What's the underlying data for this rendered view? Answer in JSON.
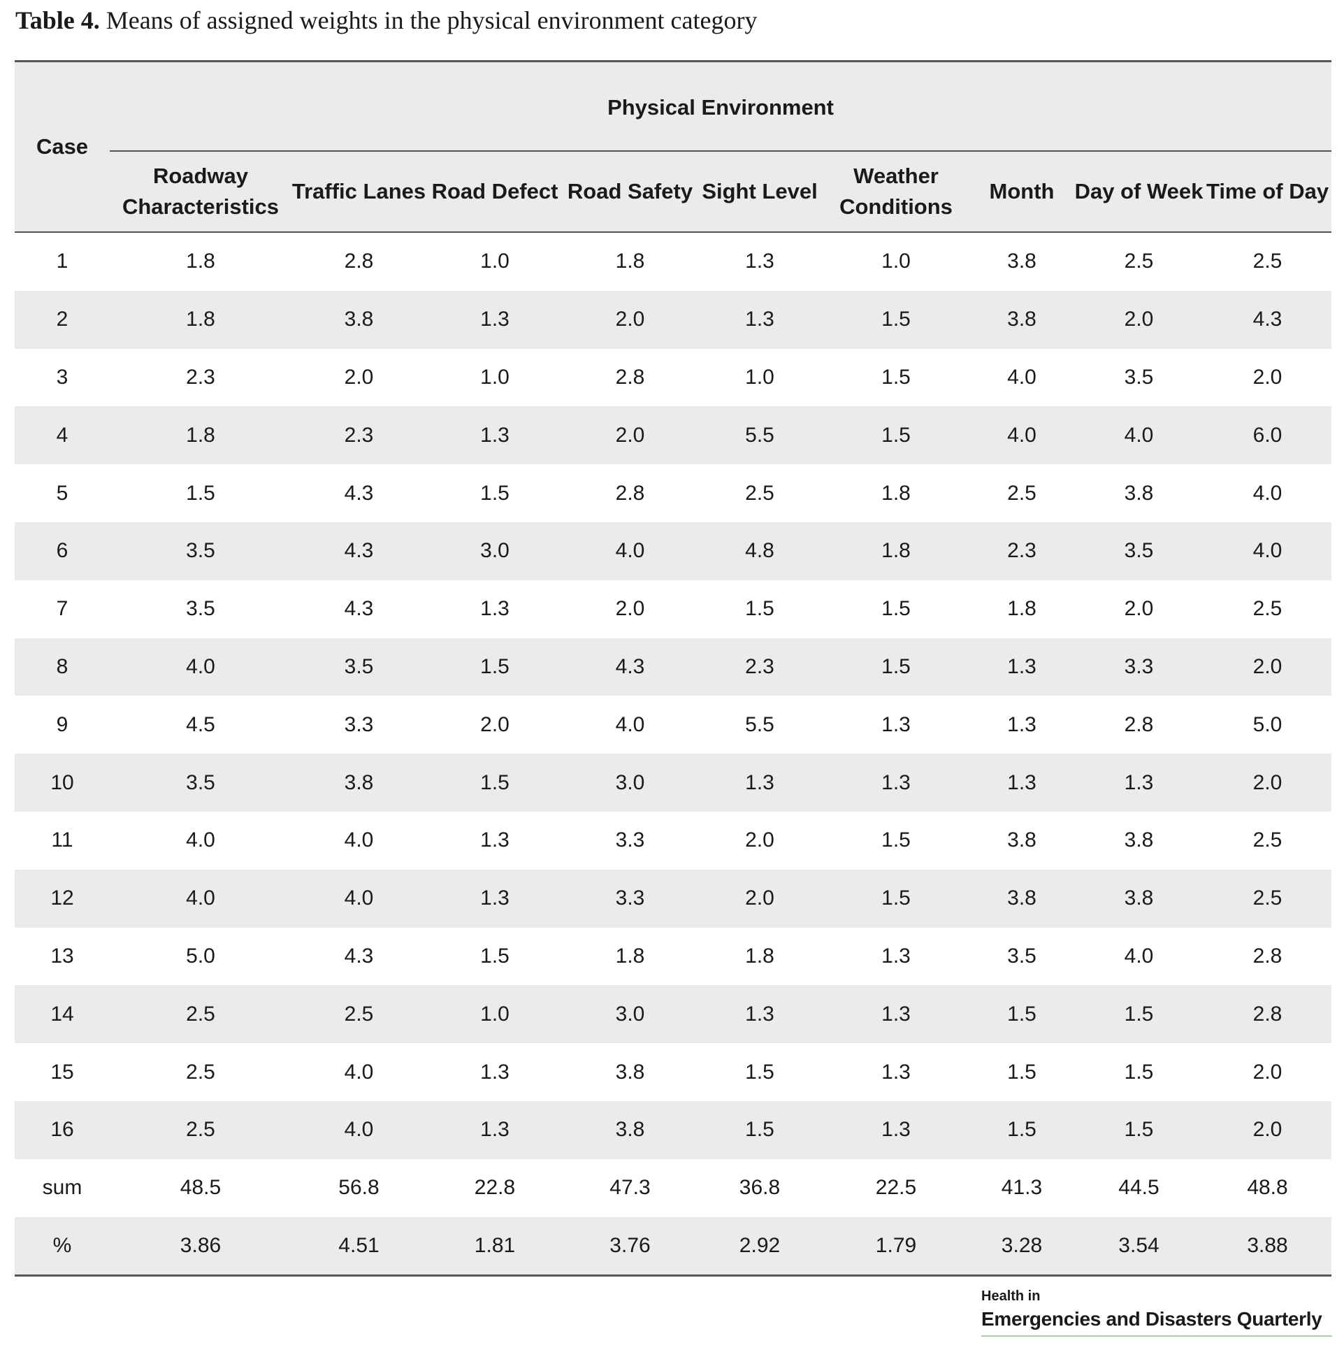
{
  "caption": {
    "label": "Table 4.",
    "text": "Means of assigned weights in the physical environment category"
  },
  "table": {
    "case_header": "Case",
    "group_header": "Physical Environment",
    "columns": [
      "Roadway Characteristics",
      "Traffic Lanes",
      "Road Defect",
      "Road Safety",
      "Sight Level",
      "Weather Conditions",
      "Month",
      "Day of Week",
      "Time of Day"
    ],
    "rows": [
      [
        "1",
        "1.8",
        "2.8",
        "1.0",
        "1.8",
        "1.3",
        "1.0",
        "3.8",
        "2.5",
        "2.5"
      ],
      [
        "2",
        "1.8",
        "3.8",
        "1.3",
        "2.0",
        "1.3",
        "1.5",
        "3.8",
        "2.0",
        "4.3"
      ],
      [
        "3",
        "2.3",
        "2.0",
        "1.0",
        "2.8",
        "1.0",
        "1.5",
        "4.0",
        "3.5",
        "2.0"
      ],
      [
        "4",
        "1.8",
        "2.3",
        "1.3",
        "2.0",
        "5.5",
        "1.5",
        "4.0",
        "4.0",
        "6.0"
      ],
      [
        "5",
        "1.5",
        "4.3",
        "1.5",
        "2.8",
        "2.5",
        "1.8",
        "2.5",
        "3.8",
        "4.0"
      ],
      [
        "6",
        "3.5",
        "4.3",
        "3.0",
        "4.0",
        "4.8",
        "1.8",
        "2.3",
        "3.5",
        "4.0"
      ],
      [
        "7",
        "3.5",
        "4.3",
        "1.3",
        "2.0",
        "1.5",
        "1.5",
        "1.8",
        "2.0",
        "2.5"
      ],
      [
        "8",
        "4.0",
        "3.5",
        "1.5",
        "4.3",
        "2.3",
        "1.5",
        "1.3",
        "3.3",
        "2.0"
      ],
      [
        "9",
        "4.5",
        "3.3",
        "2.0",
        "4.0",
        "5.5",
        "1.3",
        "1.3",
        "2.8",
        "5.0"
      ],
      [
        "10",
        "3.5",
        "3.8",
        "1.5",
        "3.0",
        "1.3",
        "1.3",
        "1.3",
        "1.3",
        "2.0"
      ],
      [
        "11",
        "4.0",
        "4.0",
        "1.3",
        "3.3",
        "2.0",
        "1.5",
        "3.8",
        "3.8",
        "2.5"
      ],
      [
        "12",
        "4.0",
        "4.0",
        "1.3",
        "3.3",
        "2.0",
        "1.5",
        "3.8",
        "3.8",
        "2.5"
      ],
      [
        "13",
        "5.0",
        "4.3",
        "1.5",
        "1.8",
        "1.8",
        "1.3",
        "3.5",
        "4.0",
        "2.8"
      ],
      [
        "14",
        "2.5",
        "2.5",
        "1.0",
        "3.0",
        "1.3",
        "1.3",
        "1.5",
        "1.5",
        "2.8"
      ],
      [
        "15",
        "2.5",
        "4.0",
        "1.3",
        "3.8",
        "1.5",
        "1.3",
        "1.5",
        "1.5",
        "2.0"
      ],
      [
        "16",
        "2.5",
        "4.0",
        "1.3",
        "3.8",
        "1.5",
        "1.3",
        "1.5",
        "1.5",
        "2.0"
      ],
      [
        "sum",
        "48.5",
        "56.8",
        "22.8",
        "47.3",
        "36.8",
        "22.5",
        "41.3",
        "44.5",
        "48.8"
      ],
      [
        "%",
        "3.86",
        "4.51",
        "1.81",
        "3.76",
        "2.92",
        "1.79",
        "3.28",
        "3.54",
        "3.88"
      ]
    ]
  },
  "journal_logo": {
    "line1": "Health in",
    "line2": "Emergencies and Disasters Quarterly",
    "accent_color": "#3c8d3a"
  }
}
